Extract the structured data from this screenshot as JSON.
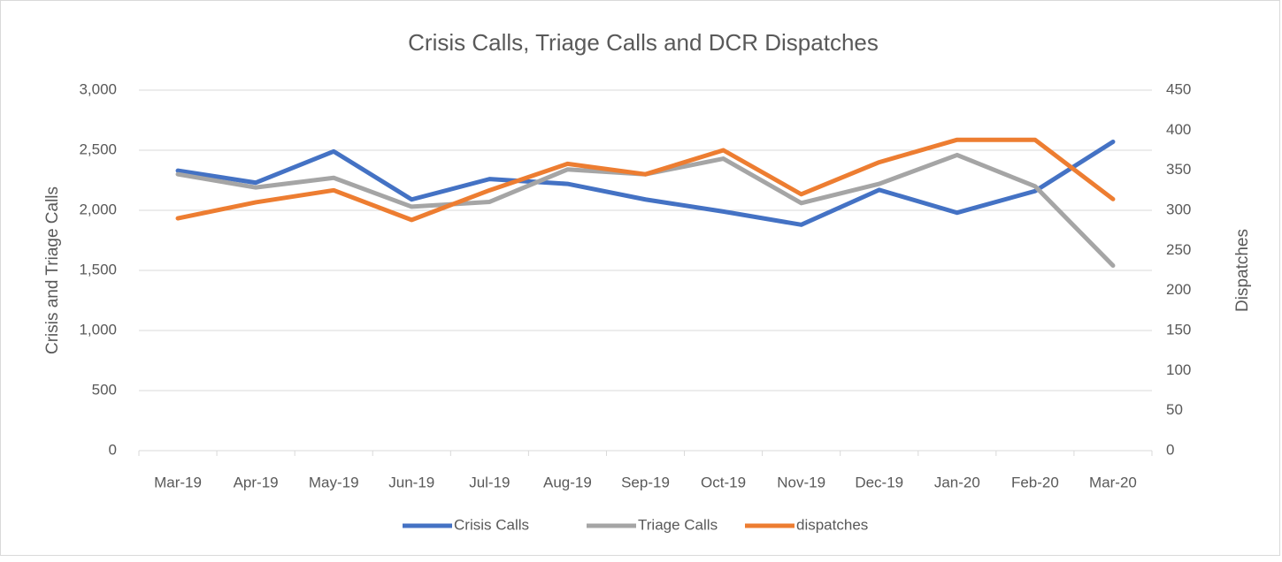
{
  "chart_data": {
    "type": "line",
    "title": "Crisis Calls, Triage Calls and DCR Dispatches",
    "ylabel": "Crisis and Triage Calls",
    "y2label": "Dispatches",
    "categories": [
      "Mar-19",
      "Apr-19",
      "May-19",
      "Jun-19",
      "Jul-19",
      "Aug-19",
      "Sep-19",
      "Oct-19",
      "Nov-19",
      "Dec-19",
      "Jan-20",
      "Feb-20",
      "Mar-20"
    ],
    "series": [
      {
        "name": "Crisis Calls",
        "color": "#4472c4",
        "values": [
          2330,
          2230,
          2490,
          2090,
          2260,
          2220,
          2090,
          1990,
          1880,
          2170,
          1980,
          2160,
          2570
        ]
      },
      {
        "name": "Triage Calls",
        "color": "#a5a5a5",
        "values": [
          2300,
          2190,
          2270,
          2030,
          2070,
          2340,
          2300,
          2430,
          2060,
          2220,
          2460,
          2200,
          1540
        ]
      },
      {
        "name": "dispatches",
        "color": "#ed7d31",
        "axis": "y2",
        "values": [
          290,
          310,
          325,
          288,
          325,
          358,
          345,
          375,
          320,
          360,
          388,
          388,
          314
        ]
      }
    ],
    "ylim": [
      0,
      3000
    ],
    "yticks": [
      0,
      {
        "value": 500,
        "label": "500"
      },
      {
        "value": 1000,
        "label": "1,000"
      },
      {
        "value": 1500,
        "label": "1,500"
      },
      {
        "value": 2000,
        "label": "2,000"
      },
      {
        "value": 2500,
        "label": "2,500"
      },
      {
        "value": 3000,
        "label": "3,000"
      }
    ],
    "y2lim": [
      0,
      450
    ],
    "y2ticks": [
      0,
      50,
      100,
      150,
      200,
      250,
      300,
      350,
      400,
      450
    ],
    "grid": true,
    "legend": "bottom"
  }
}
